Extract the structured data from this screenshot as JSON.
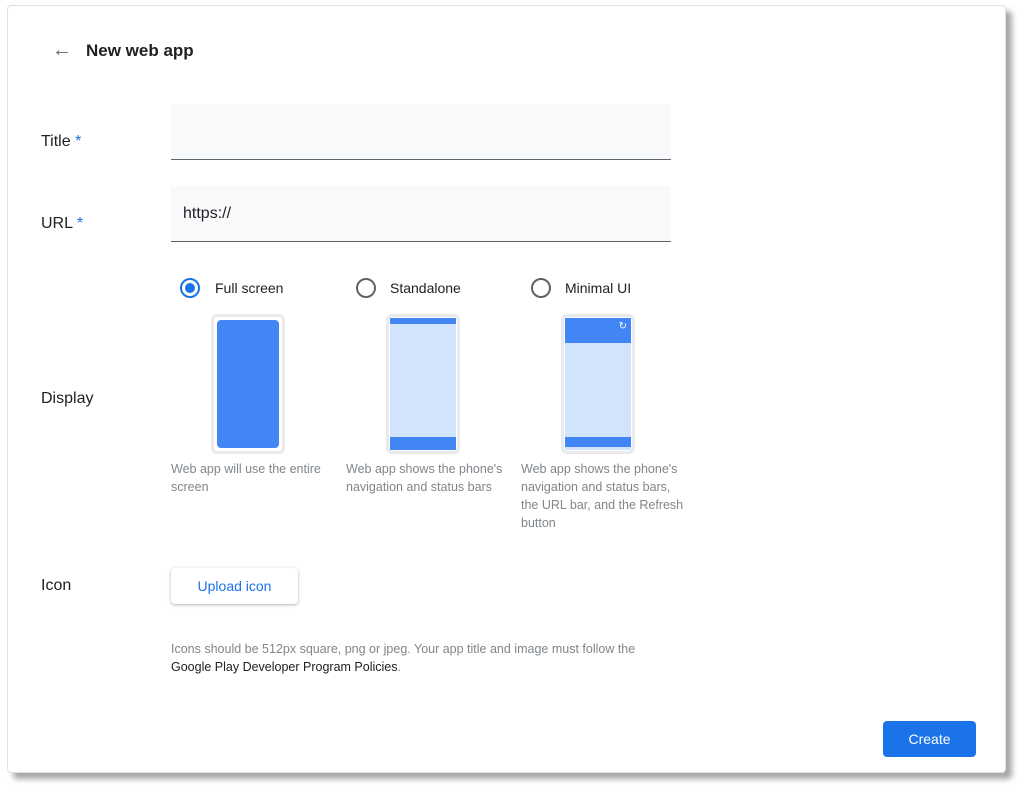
{
  "header": {
    "title": "New web app",
    "back_icon": "arrow-left-icon"
  },
  "form": {
    "title_label": "Title",
    "url_label": "URL",
    "required_mark": "*",
    "title_value": "",
    "url_value": "https://",
    "display_label": "Display",
    "display_options": [
      {
        "label": "Full screen",
        "selected": true,
        "caption": "Web app will use the entire screen"
      },
      {
        "label": "Standalone",
        "selected": false,
        "caption": "Web app shows the phone's navigation and status bars"
      },
      {
        "label": "Minimal UI",
        "selected": false,
        "caption": "Web app shows the phone's navigation and status bars, the URL bar, and the Refresh button"
      }
    ],
    "icon_label": "Icon",
    "upload_label": "Upload icon",
    "help_text": "Icons should be 512px square, png or jpeg. Your app title and image must follow the",
    "help_link": "Google Play Developer Program Policies",
    "help_end": "."
  },
  "footer": {
    "create_label": "Create"
  },
  "colors": {
    "accent": "#1a73e8",
    "phone_blue": "#4285f4",
    "phone_light": "#d2e3fc"
  }
}
